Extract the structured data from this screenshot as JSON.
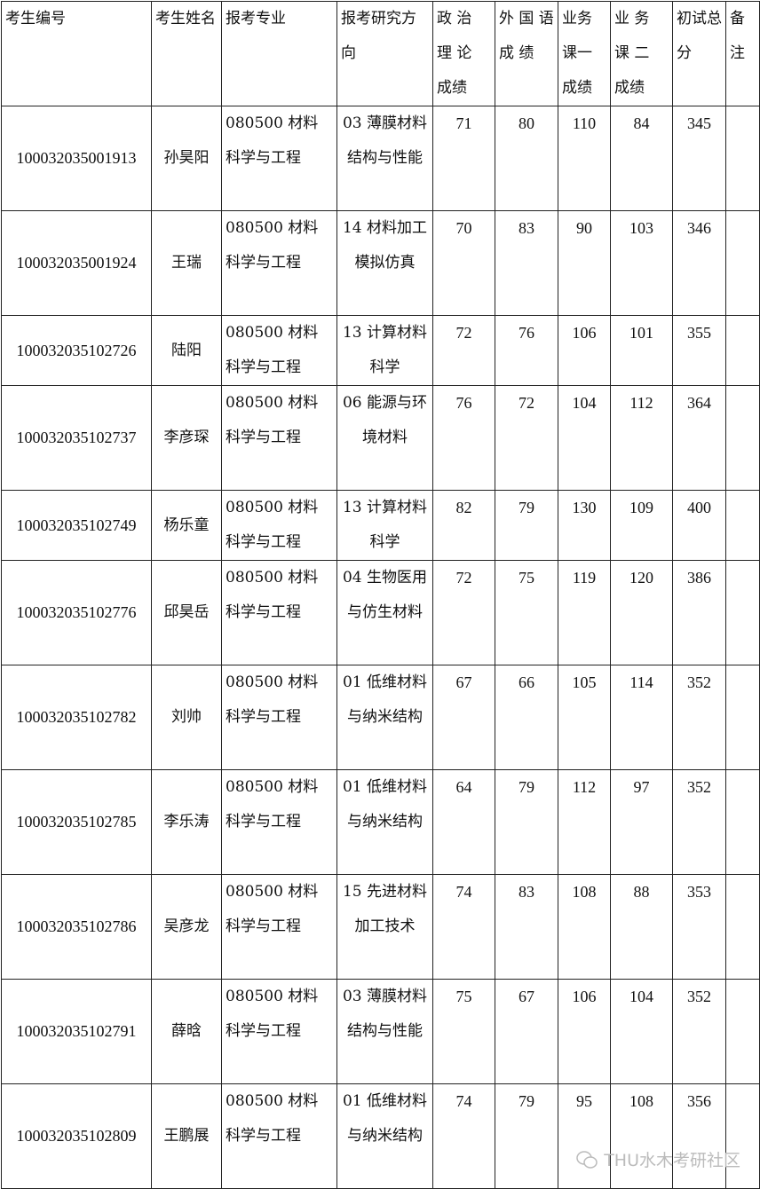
{
  "table": {
    "headers": [
      "考生编号",
      "考生姓名",
      "报考专业",
      "报考研究方向",
      "政 治 理 论 成绩",
      "外 国 语 成 绩",
      "业务课一成绩",
      "业 务 课 二 成绩",
      "初试总分",
      "备注"
    ],
    "rows": [
      {
        "id": "100032035001913",
        "name": "孙昊阳",
        "major": "080500 材料科学与工程",
        "direction": "03 薄膜材料结构与性能",
        "politics": "71",
        "foreign": "80",
        "course1": "110",
        "course2": "84",
        "total": "345",
        "note": "",
        "lines": 3
      },
      {
        "id": "100032035001924",
        "name": "王瑞",
        "major": "080500 材料科学与工程",
        "direction": "14 材料加工模拟仿真",
        "politics": "70",
        "foreign": "83",
        "course1": "90",
        "course2": "103",
        "total": "346",
        "note": "",
        "lines": 3
      },
      {
        "id": "100032035102726",
        "name": "陆阳",
        "major": "080500 材料科学与工程",
        "direction": "13 计算材料科学",
        "politics": "72",
        "foreign": "76",
        "course1": "106",
        "course2": "101",
        "total": "355",
        "note": "",
        "lines": 2
      },
      {
        "id": "100032035102737",
        "name": "李彦琛",
        "major": "080500 材料科学与工程",
        "direction": "06 能源与环境材料",
        "politics": "76",
        "foreign": "72",
        "course1": "104",
        "course2": "112",
        "total": "364",
        "note": "",
        "lines": 3
      },
      {
        "id": "100032035102749",
        "name": "杨乐童",
        "major": "080500 材料科学与工程",
        "direction": "13 计算材料科学",
        "politics": "82",
        "foreign": "79",
        "course1": "130",
        "course2": "109",
        "total": "400",
        "note": "",
        "lines": 2
      },
      {
        "id": "100032035102776",
        "name": "邱昊岳",
        "major": "080500 材料科学与工程",
        "direction": "04 生物医用与仿生材料",
        "politics": "72",
        "foreign": "75",
        "course1": "119",
        "course2": "120",
        "total": "386",
        "note": "",
        "lines": 3
      },
      {
        "id": "100032035102782",
        "name": "刘帅",
        "major": "080500 材料科学与工程",
        "direction": "01 低维材料与纳米结构",
        "politics": "67",
        "foreign": "66",
        "course1": "105",
        "course2": "114",
        "total": "352",
        "note": "",
        "lines": 3
      },
      {
        "id": "100032035102785",
        "name": "李乐涛",
        "major": "080500 材料科学与工程",
        "direction": "01 低维材料与纳米结构",
        "politics": "64",
        "foreign": "79",
        "course1": "112",
        "course2": "97",
        "total": "352",
        "note": "",
        "lines": 3
      },
      {
        "id": "100032035102786",
        "name": "吴彦龙",
        "major": "080500 材料科学与工程",
        "direction": "15 先进材料加工技术",
        "politics": "74",
        "foreign": "83",
        "course1": "108",
        "course2": "88",
        "total": "353",
        "note": "",
        "lines": 3
      },
      {
        "id": "100032035102791",
        "name": "薛晗",
        "major": "080500 材料科学与工程",
        "direction": "03 薄膜材料结构与性能",
        "politics": "75",
        "foreign": "67",
        "course1": "106",
        "course2": "104",
        "total": "352",
        "note": "",
        "lines": 3
      },
      {
        "id": "100032035102809",
        "name": "王鹏展",
        "major": "080500 材料科学与工程",
        "direction": "01 低维材料与纳米结构",
        "politics": "74",
        "foreign": "79",
        "course1": "95",
        "course2": "108",
        "total": "356",
        "note": "",
        "lines": 3
      }
    ]
  },
  "watermark": {
    "text": "THU水木考研社区",
    "icon": "wechat-icon"
  }
}
